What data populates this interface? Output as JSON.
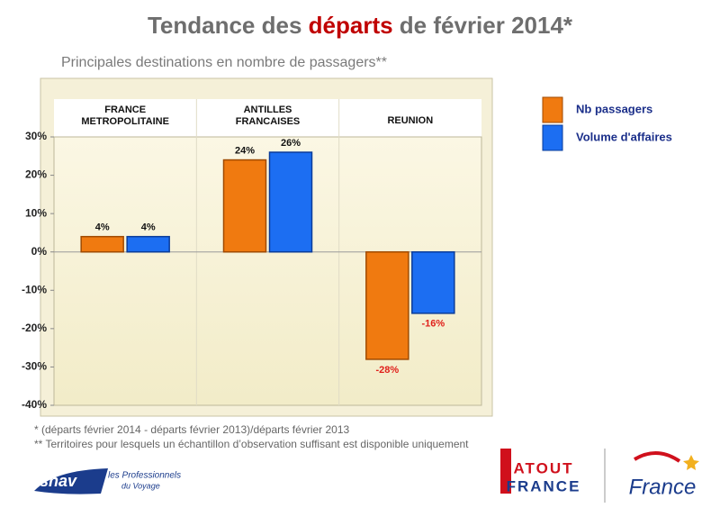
{
  "chart_data": {
    "type": "bar",
    "title": [
      "Tendance des",
      "départs",
      "de février 2014*"
    ],
    "subtitle": "Principales destinations en nombre de passagers**",
    "categories": [
      "FRANCE\nMETROPOLITAINE",
      "ANTILLES\nFRANCAISES",
      "REUNION"
    ],
    "series": [
      {
        "name": "Nb passagers",
        "color": "#f07a10",
        "values": [
          4,
          24,
          -28
        ],
        "value_labels": [
          "4%",
          "24%",
          "-28%"
        ]
      },
      {
        "name": "Volume d'affaires",
        "color": "#1c6ef2",
        "values": [
          4,
          26,
          -16
        ],
        "value_labels": [
          "4%",
          "26%",
          "-16%"
        ]
      }
    ],
    "ylim": [
      -40,
      30
    ],
    "yticks": [
      {
        "value": -40,
        "label": "-40%"
      },
      {
        "value": -30,
        "label": "-30%"
      },
      {
        "value": -20,
        "label": "-20%"
      },
      {
        "value": -10,
        "label": "-10%"
      },
      {
        "value": 0,
        "label": "0%"
      },
      {
        "value": 10,
        "label": "10%"
      },
      {
        "value": 20,
        "label": "20%"
      },
      {
        "value": 30,
        "label": "30%"
      }
    ],
    "legend_position": "right",
    "footnotes": [
      "* (départs février 2014 - départs février 2013)/départs février 2013",
      "** Territoires pour lesquels un échantillon d’observation suffisant est disponible uniquement"
    ]
  },
  "logos": {
    "snav": "snav",
    "snav_tagline": [
      "les Professionnels",
      "du Voyage"
    ],
    "atout": [
      "ATOUT",
      "FRANCE"
    ],
    "france": "France"
  }
}
